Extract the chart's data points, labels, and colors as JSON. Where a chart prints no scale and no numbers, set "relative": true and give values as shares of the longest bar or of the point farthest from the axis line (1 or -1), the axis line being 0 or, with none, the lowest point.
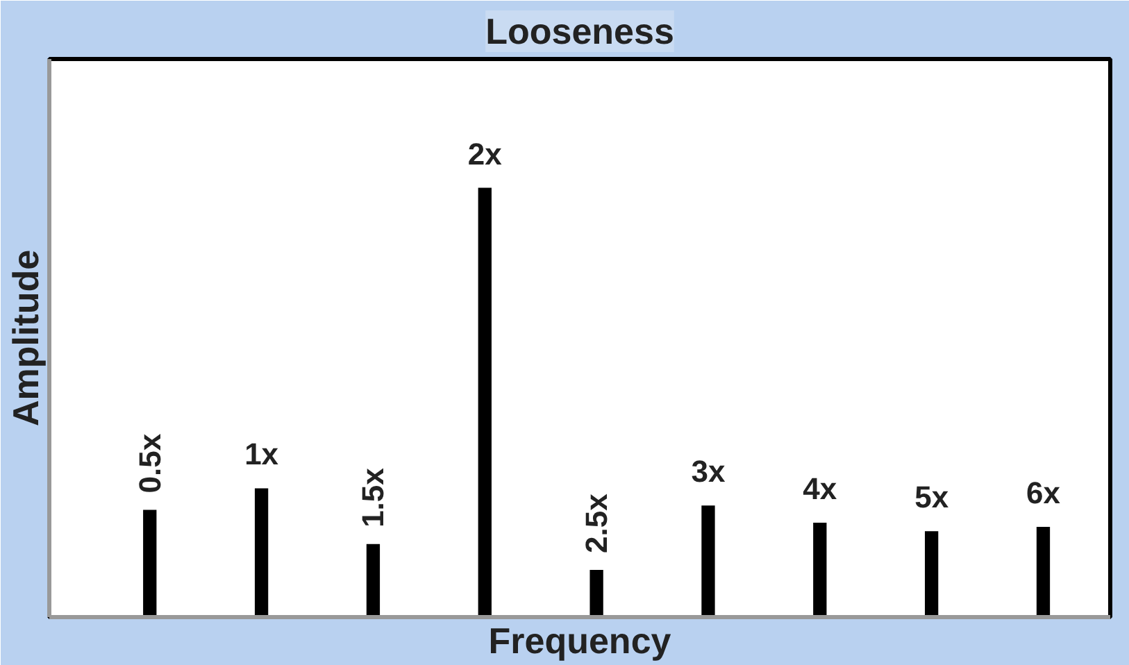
{
  "chart_data": {
    "type": "bar",
    "title": "Looseness",
    "xlabel": "Frequency",
    "ylabel": "Amplitude",
    "relative": true,
    "categories": [
      null,
      null,
      null,
      null,
      null,
      null,
      null,
      null,
      null
    ],
    "values": [
      0.25,
      0.3,
      0.17,
      1,
      0.11,
      0.26,
      0.22,
      0.2,
      0.21
    ],
    "color": "#000000",
    "tick_labels": false,
    "annotations": [
      "0.5x",
      "1x",
      "1.5x",
      "2x",
      "2.5x",
      "3x",
      "4x",
      "5x",
      "6x"
    ]
  }
}
